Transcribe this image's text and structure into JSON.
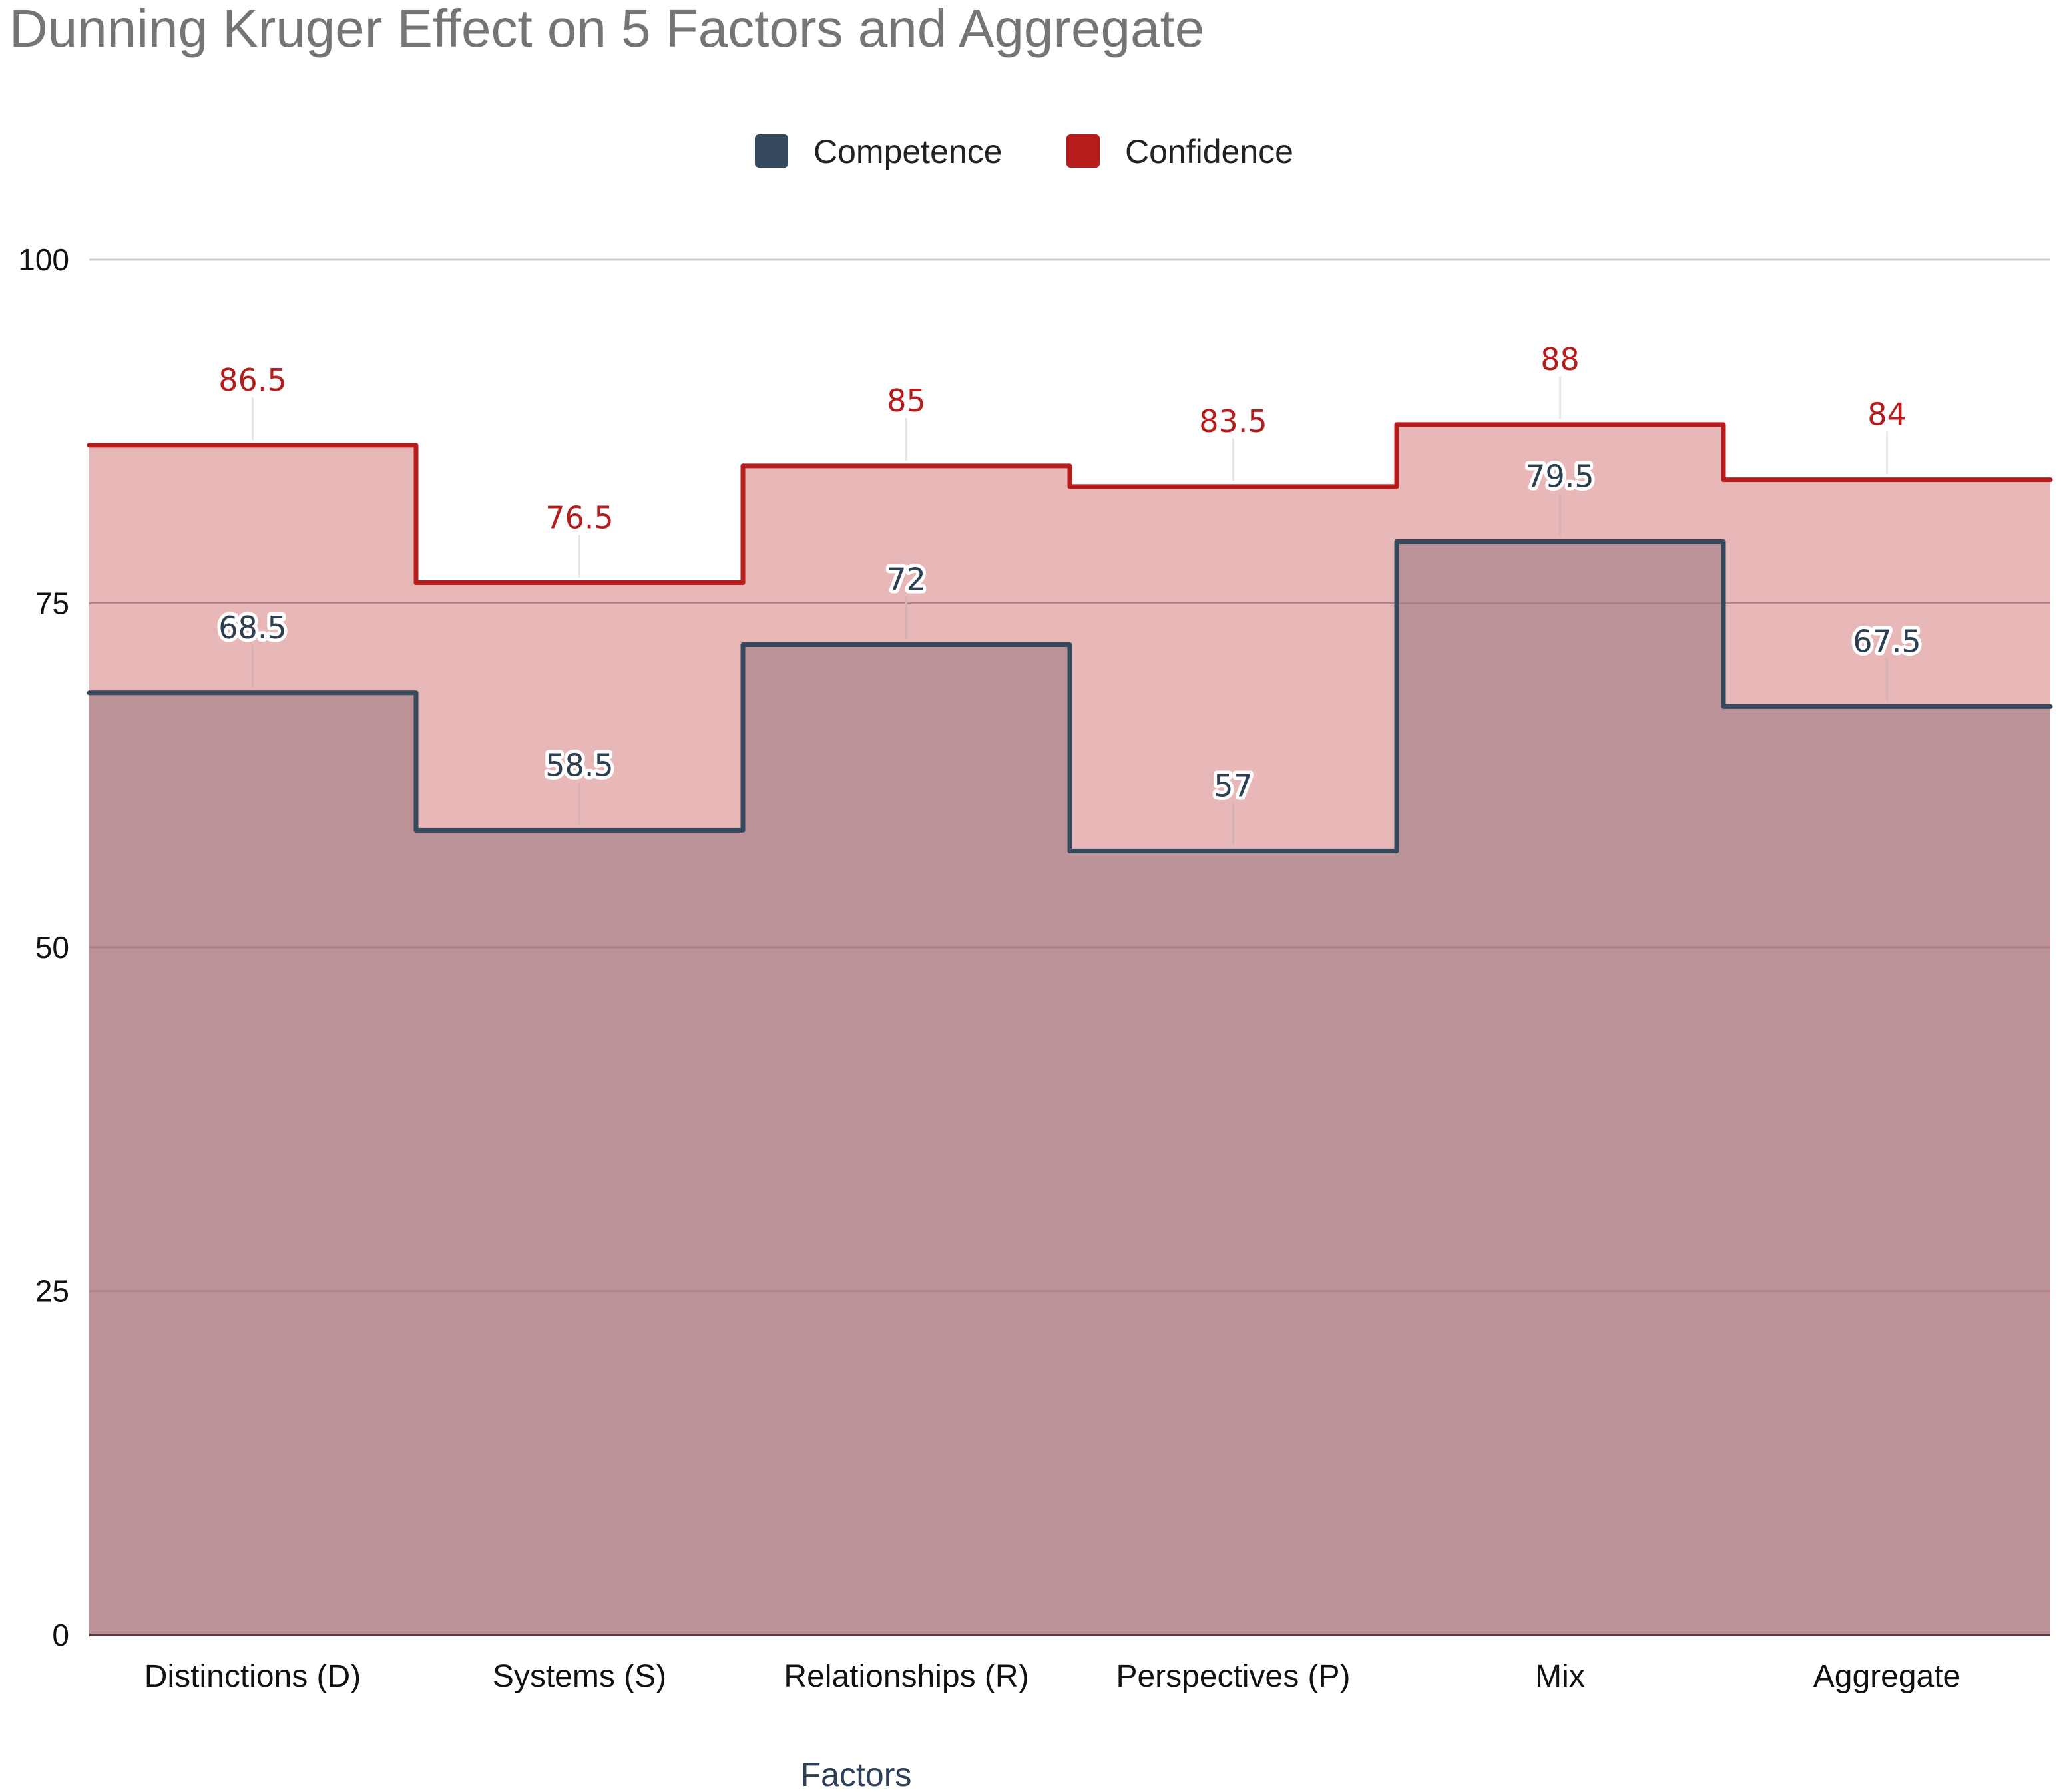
{
  "colors": {
    "competence": "#34495e",
    "confidence": "#b71c1c",
    "confidence_fill": "#e8b8b9",
    "competence_fill": "#bb9297",
    "title": "#757575"
  },
  "chart_data": {
    "type": "area",
    "step": true,
    "title": "Dunning Kruger Effect on 5 Factors and Aggregate",
    "xlabel": "Factors",
    "ylabel": "",
    "ylim": [
      0,
      100
    ],
    "yticks": [
      0,
      25,
      50,
      75,
      100
    ],
    "grid": true,
    "legend_position": "top-center",
    "categories": [
      "Distinctions (D)",
      "Systems (S)",
      "Relationships (R)",
      "Perspectives (P)",
      "Mix",
      "Aggregate"
    ],
    "series": [
      {
        "name": "Competence",
        "values": [
          68.5,
          58.5,
          72,
          57,
          79.5,
          67.5
        ]
      },
      {
        "name": "Confidence",
        "values": [
          86.5,
          76.5,
          85,
          83.5,
          88,
          84
        ]
      }
    ]
  }
}
